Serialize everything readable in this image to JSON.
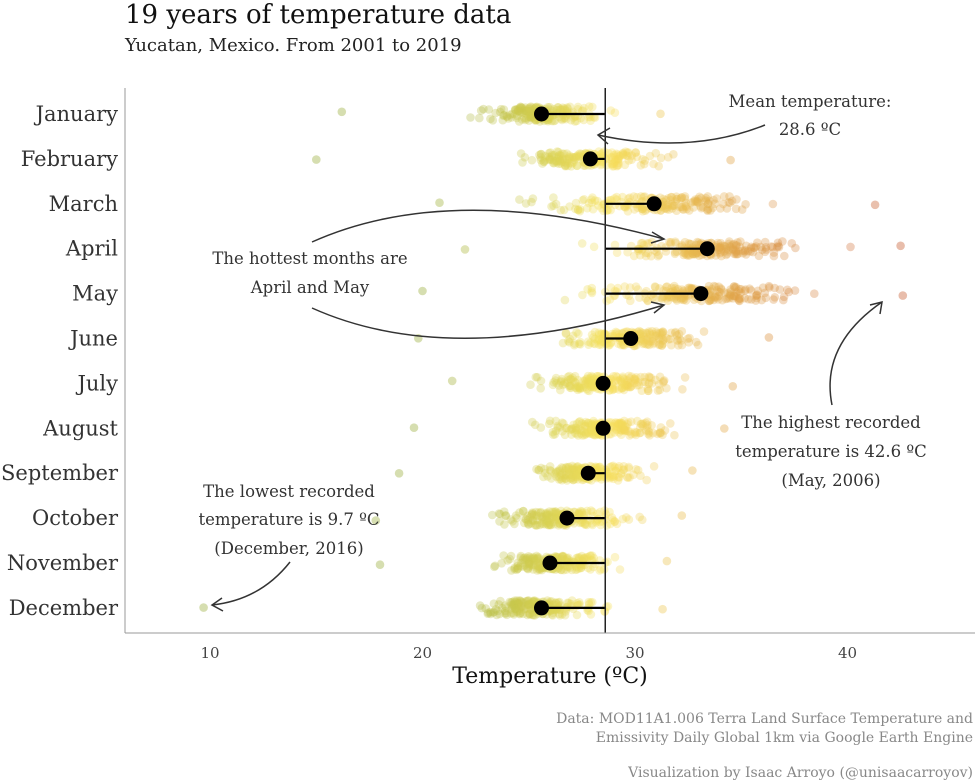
{
  "chart_data": {
    "type": "scatter",
    "title": "19 years of temperature data",
    "subtitle": "Yucatan, Mexico. From 2001 to 2019",
    "xlabel": "Temperature (ºC)",
    "ylabel": "",
    "xlim": [
      6,
      46
    ],
    "x_ticks": [
      "10",
      "20",
      "30",
      "40"
    ],
    "x_tick_values": [
      10,
      20,
      30,
      40
    ],
    "grid": false,
    "overall_mean": 28.6,
    "categories": [
      "January",
      "February",
      "March",
      "April",
      "May",
      "June",
      "July",
      "August",
      "September",
      "October",
      "November",
      "December"
    ],
    "monthly_mean": [
      25.6,
      27.9,
      30.9,
      33.4,
      33.1,
      29.8,
      28.5,
      28.5,
      27.8,
      26.8,
      26.0,
      25.6
    ],
    "monthly_range": [
      [
        16.2,
        31.2
      ],
      [
        15.0,
        34.5
      ],
      [
        20.8,
        41.3
      ],
      [
        22.0,
        42.5
      ],
      [
        20.0,
        42.6
      ],
      [
        19.8,
        36.3
      ],
      [
        21.4,
        34.6
      ],
      [
        19.6,
        34.2
      ],
      [
        18.9,
        32.7
      ],
      [
        17.8,
        32.2
      ],
      [
        18.0,
        31.5
      ],
      [
        9.7,
        31.3
      ]
    ],
    "color_scale": {
      "low": "#98ac3a",
      "mid": "#f7e25e",
      "high": "#c65a2e",
      "low_value": 20,
      "mid_value": 28.6,
      "high_value": 42
    },
    "annotations": {
      "mean_line": {
        "line1": "Mean temperature:",
        "line2": "28.6 ºC"
      },
      "hottest": {
        "line1": "The hottest months are",
        "line2": "April and May"
      },
      "highest": {
        "line1": "The highest recorded",
        "line2": "temperature is 42.6 ºC",
        "line3": "(May, 2006)"
      },
      "lowest": {
        "line1": "The lowest recorded",
        "line2": "temperature is 9.7 ºC",
        "line3": "(December, 2016)"
      }
    },
    "caption": {
      "data_line1": "Data: MOD11A1.006 Terra Land Surface Temperature and",
      "data_line2": "Emissivity Daily Global 1km via Google Earth Engine",
      "credit": "Visualization by Isaac Arroyo (@unisaacarroyov)"
    }
  }
}
